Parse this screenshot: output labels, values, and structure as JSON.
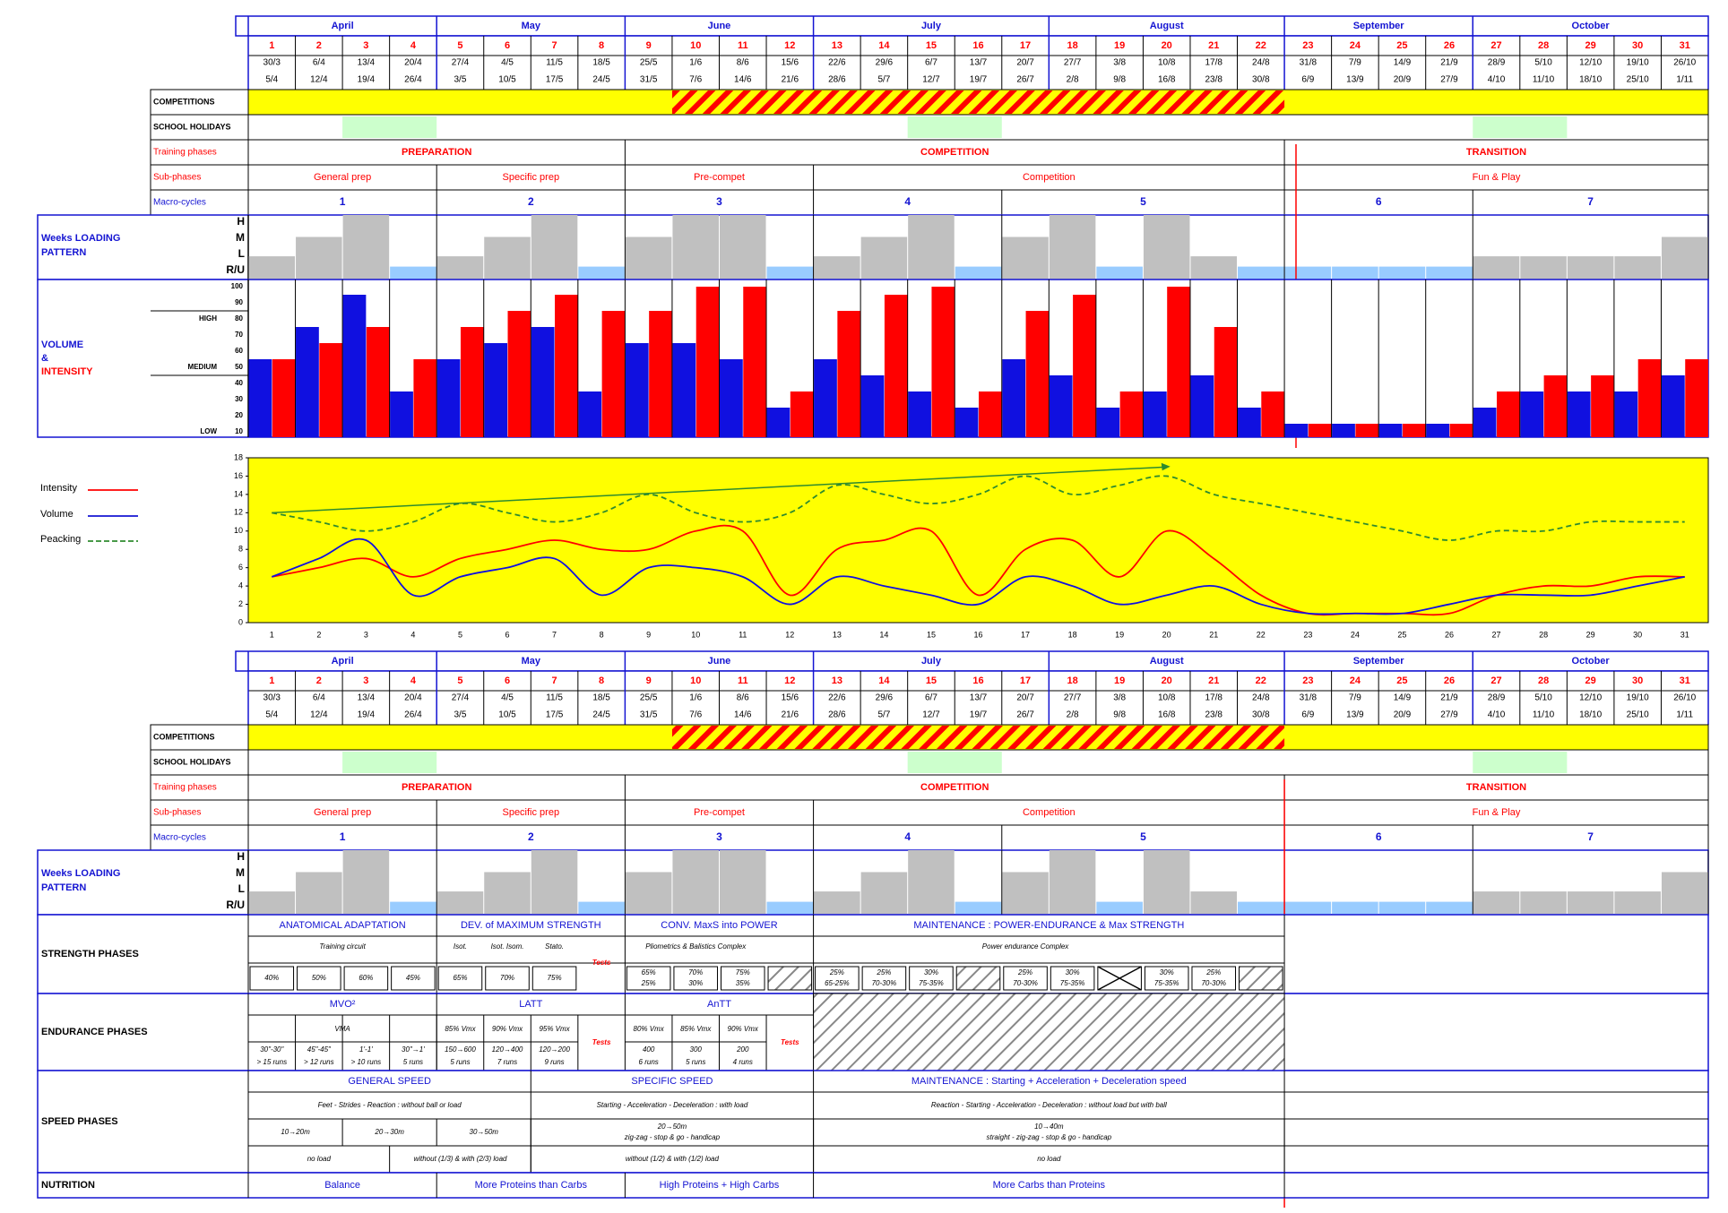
{
  "months": [
    {
      "label": "April",
      "span": [
        1,
        4
      ]
    },
    {
      "label": "May",
      "span": [
        5,
        8
      ]
    },
    {
      "label": "June",
      "span": [
        9,
        12
      ]
    },
    {
      "label": "July",
      "span": [
        13,
        17
      ]
    },
    {
      "label": "August",
      "span": [
        18,
        22
      ]
    },
    {
      "label": "September",
      "span": [
        23,
        26
      ]
    },
    {
      "label": "October",
      "span": [
        27,
        31
      ]
    }
  ],
  "weeks": [
    "1",
    "2",
    "3",
    "4",
    "5",
    "6",
    "7",
    "8",
    "9",
    "10",
    "11",
    "12",
    "13",
    "14",
    "15",
    "16",
    "17",
    "18",
    "19",
    "20",
    "21",
    "22",
    "23",
    "24",
    "25",
    "26",
    "27",
    "28",
    "29",
    "30",
    "31"
  ],
  "week_starts": [
    "30/3",
    "6/4",
    "13/4",
    "20/4",
    "27/4",
    "4/5",
    "11/5",
    "18/5",
    "25/5",
    "1/6",
    "8/6",
    "15/6",
    "22/6",
    "29/6",
    "6/7",
    "13/7",
    "20/7",
    "27/7",
    "3/8",
    "10/8",
    "17/8",
    "24/8",
    "31/8",
    "7/9",
    "14/9",
    "21/9",
    "28/9",
    "5/10",
    "12/10",
    "19/10",
    "26/10"
  ],
  "week_ends": [
    "5/4",
    "12/4",
    "19/4",
    "26/4",
    "3/5",
    "10/5",
    "17/5",
    "24/5",
    "31/5",
    "7/6",
    "14/6",
    "21/6",
    "28/6",
    "5/7",
    "12/7",
    "19/7",
    "26/7",
    "2/8",
    "9/8",
    "16/8",
    "23/8",
    "30/8",
    "6/9",
    "13/9",
    "20/9",
    "27/9",
    "4/10",
    "11/10",
    "18/10",
    "25/10",
    "1/11"
  ],
  "row_labels": {
    "competitions": "COMPETITIONS",
    "school_holidays": "SCHOOL HOLIDAYS",
    "training_phases": "Training phases",
    "sub_phases": "Sub-phases",
    "macro_cycles": "Macro-cycles",
    "loading_line1": "Weeks LOADING",
    "loading_line2": "PATTERN",
    "volume": "VOLUME",
    "amp": "&",
    "intensity": "INTENSITY",
    "strength": "STRENGTH PHASES",
    "endurance": "ENDURANCE PHASES",
    "speed": "SPEED PHASES",
    "nutrition": "NUTRITION"
  },
  "competitions_weeks": [
    10,
    22
  ],
  "school_holidays": [
    [
      3,
      4
    ],
    [
      15,
      16
    ],
    [
      27,
      28
    ]
  ],
  "training_phases": [
    {
      "label": "PREPARATION",
      "span": [
        1,
        8
      ]
    },
    {
      "label": "COMPETITION",
      "span": [
        9,
        22
      ]
    },
    {
      "label": "TRANSITION",
      "span": [
        23,
        31
      ]
    }
  ],
  "sub_phases": [
    {
      "label": "General prep",
      "span": [
        1,
        4
      ]
    },
    {
      "label": "Specific prep",
      "span": [
        5,
        8
      ]
    },
    {
      "label": "Pre-compet",
      "span": [
        9,
        12
      ]
    },
    {
      "label": "Competition",
      "span": [
        13,
        22
      ]
    },
    {
      "label": "Fun & Play",
      "span": [
        23,
        31
      ]
    }
  ],
  "macro_cycles": [
    {
      "label": "1",
      "span": [
        1,
        4
      ]
    },
    {
      "label": "2",
      "span": [
        5,
        8
      ]
    },
    {
      "label": "3",
      "span": [
        9,
        12
      ]
    },
    {
      "label": "4",
      "span": [
        13,
        16
      ]
    },
    {
      "label": "5",
      "span": [
        17,
        22
      ]
    },
    {
      "label": "6",
      "span": [
        23,
        26
      ]
    },
    {
      "label": "7",
      "span": [
        27,
        31
      ]
    }
  ],
  "loading_levels": {
    "labels": [
      "H",
      "M",
      "L",
      "R/U"
    ]
  },
  "loading_pattern": [
    "L",
    "M",
    "H",
    "R",
    "L",
    "M",
    "H",
    "R",
    "M",
    "H",
    "H",
    "R",
    "L",
    "M",
    "H",
    "R",
    "M",
    "H",
    "R",
    "H",
    "L",
    "R",
    "R",
    "R",
    "R",
    "R",
    "L",
    "L",
    "L",
    "L",
    "M"
  ],
  "colors": {
    "blue": "#1010e0",
    "red": "#ff0000",
    "grey": "#c0c0c0",
    "lightblue": "#99ccff",
    "yellow": "#ffff00",
    "green": "#ccffcc",
    "darkgreen": "#2e8b2e"
  },
  "chart_data": [
    {
      "type": "bar",
      "title": "VOLUME & INTENSITY",
      "categories": [
        "1",
        "2",
        "3",
        "4",
        "5",
        "6",
        "7",
        "8",
        "9",
        "10",
        "11",
        "12",
        "13",
        "14",
        "15",
        "16",
        "17",
        "18",
        "19",
        "20",
        "21",
        "22",
        "23",
        "24",
        "25",
        "26",
        "27",
        "28",
        "29",
        "30",
        "31"
      ],
      "series": [
        {
          "name": "VOLUME",
          "color": "#1010e0",
          "values": [
            55,
            75,
            95,
            35,
            55,
            65,
            75,
            35,
            65,
            65,
            55,
            25,
            55,
            45,
            35,
            25,
            55,
            45,
            25,
            35,
            45,
            25,
            15,
            15,
            15,
            15,
            25,
            35,
            35,
            35,
            45
          ]
        },
        {
          "name": "INTENSITY",
          "color": "#ff0000",
          "values": [
            55,
            65,
            75,
            55,
            75,
            85,
            95,
            85,
            85,
            100,
            100,
            35,
            85,
            95,
            100,
            35,
            85,
            95,
            35,
            100,
            75,
            35,
            15,
            15,
            15,
            15,
            35,
            45,
            45,
            55,
            55
          ]
        }
      ],
      "ylim": [
        10,
        100
      ],
      "yticks": [
        "10",
        "20",
        "30",
        "40",
        "50",
        "60",
        "70",
        "80",
        "90",
        "100"
      ],
      "level_labels": {
        "high": "HIGH",
        "medium": "MEDIUM",
        "low": "LOW"
      }
    },
    {
      "type": "line",
      "x": [
        1,
        2,
        3,
        4,
        5,
        6,
        7,
        8,
        9,
        10,
        11,
        12,
        13,
        14,
        15,
        16,
        17,
        18,
        19,
        20,
        21,
        22,
        23,
        24,
        25,
        26,
        27,
        28,
        29,
        30,
        31
      ],
      "series": [
        {
          "name": "Intensity",
          "color": "#ff0000",
          "values": [
            5,
            6,
            7,
            5,
            7,
            8,
            9,
            8,
            8,
            10,
            10,
            3,
            8,
            9,
            10,
            3,
            8,
            9,
            5,
            10,
            7,
            3,
            1,
            1,
            1,
            1,
            3,
            4,
            4,
            5,
            5
          ]
        },
        {
          "name": "Volume",
          "color": "#1010e0",
          "values": [
            5,
            7,
            9,
            3,
            5,
            6,
            7,
            3,
            6,
            6,
            5,
            2,
            5,
            4,
            3,
            2,
            5,
            4,
            2,
            3,
            4,
            2,
            1,
            1,
            1,
            2,
            3,
            3,
            3,
            4,
            5
          ]
        },
        {
          "name": "Peacking",
          "color": "#2e8b2e",
          "values": [
            12,
            11,
            10,
            11,
            13,
            12,
            11,
            12,
            14,
            12,
            11,
            12,
            15,
            14,
            13,
            14,
            16,
            14,
            15,
            16,
            14,
            13,
            12,
            11,
            10,
            9,
            10,
            10,
            11,
            11,
            11
          ]
        }
      ],
      "trend": {
        "from": [
          1,
          12
        ],
        "to": [
          20,
          17
        ]
      },
      "ylim": [
        0,
        18
      ],
      "yticks": [
        "0",
        "2",
        "4",
        "6",
        "8",
        "10",
        "12",
        "14",
        "16",
        "18"
      ]
    }
  ],
  "strength": {
    "headers": [
      {
        "label": "ANATOMICAL ADAPTATION",
        "span": [
          1,
          4
        ]
      },
      {
        "label": "DEV. of MAXIMUM STRENGTH",
        "span": [
          5,
          8
        ]
      },
      {
        "label": "CONV. MaxS into POWER",
        "span": [
          9,
          12
        ]
      },
      {
        "label": "MAINTENANCE : POWER-ENDURANCE & Max STRENGTH",
        "span": [
          13,
          22
        ]
      }
    ],
    "methods": [
      {
        "label": "Training circuit",
        "span": [
          1,
          4
        ]
      },
      {
        "label": "Isot.",
        "span": [
          5,
          5
        ]
      },
      {
        "label": "Isot. Isom.",
        "span": [
          6,
          6
        ]
      },
      {
        "label": "Stato.",
        "span": [
          7,
          7
        ]
      },
      {
        "label": "Pliometrics & Balistics Complex",
        "span": [
          9,
          11
        ]
      },
      {
        "label": "Power endurance Complex",
        "span": [
          13,
          21
        ]
      }
    ],
    "tests": "Tests",
    "loads": [
      {
        "w": 1,
        "a": "40%"
      },
      {
        "w": 2,
        "a": "50%"
      },
      {
        "w": 3,
        "a": "60%"
      },
      {
        "w": 4,
        "a": "45%"
      },
      {
        "w": 5,
        "a": "65%"
      },
      {
        "w": 6,
        "a": "70%"
      },
      {
        "w": 7,
        "a": "75%"
      },
      {
        "w": 9,
        "a": "65%",
        "b": "25%"
      },
      {
        "w": 10,
        "a": "70%",
        "b": "30%"
      },
      {
        "w": 11,
        "a": "75%",
        "b": "35%"
      },
      {
        "w": 13,
        "a": "25%",
        "b": "65-25%"
      },
      {
        "w": 14,
        "a": "25%",
        "b": "70-30%"
      },
      {
        "w": 15,
        "a": "30%",
        "b": "75-35%"
      },
      {
        "w": 17,
        "a": "25%",
        "b": "70-30%"
      },
      {
        "w": 18,
        "a": "30%",
        "b": "75-35%"
      },
      {
        "w": 20,
        "a": "30%",
        "b": "75-35%"
      },
      {
        "w": 21,
        "a": "25%",
        "b": "70-30%"
      }
    ]
  },
  "endurance": {
    "headers": [
      {
        "label": "MVO²",
        "span": [
          1,
          4
        ]
      },
      {
        "label": "LATT",
        "span": [
          5,
          8
        ]
      },
      {
        "label": "AnTT",
        "span": [
          9,
          12
        ]
      }
    ],
    "vma": "VMA",
    "tests": "Tests",
    "sets": [
      {
        "w": 1,
        "a": "30\"-30\"",
        "b": "> 15 runs"
      },
      {
        "w": 2,
        "a": "45\"-45\"",
        "b": "> 12 runs"
      },
      {
        "w": 3,
        "a": "1'-1'",
        "b": "> 10 runs"
      },
      {
        "w": 4,
        "a": "30\"→1'",
        "b": "5 runs"
      },
      {
        "w": 5,
        "a": "150→600",
        "b": "5 runs"
      },
      {
        "w": 6,
        "a": "120→400",
        "b": "7 runs"
      },
      {
        "w": 7,
        "a": "120→200",
        "b": "9 runs"
      },
      {
        "w": 9,
        "a": "400",
        "b": "6 runs"
      },
      {
        "w": 10,
        "a": "300",
        "b": "5 runs"
      },
      {
        "w": 11,
        "a": "200",
        "b": "4 runs"
      }
    ],
    "speeds": [
      {
        "w": 5,
        "t": "85% Vmx"
      },
      {
        "w": 6,
        "t": "90% Vmx"
      },
      {
        "w": 7,
        "t": "95% Vmx"
      },
      {
        "w": 9,
        "t": "80% Vmx"
      },
      {
        "w": 10,
        "t": "85% Vmx"
      },
      {
        "w": 11,
        "t": "90% Vmx"
      }
    ]
  },
  "speed": {
    "headers": [
      {
        "label": "GENERAL SPEED",
        "span": [
          1,
          6
        ]
      },
      {
        "label": "SPECIFIC SPEED",
        "span": [
          7,
          12
        ]
      },
      {
        "label": "MAINTENANCE : Starting + Acceleration + Deceleration speed",
        "span": [
          13,
          22
        ]
      }
    ],
    "row2": [
      {
        "label": "Feet - Strides - Reaction : without ball or load",
        "span": [
          1,
          6
        ]
      },
      {
        "label": "Starting - Acceleration - Deceleration : with load",
        "span": [
          7,
          12
        ]
      },
      {
        "label": "Reaction - Starting - Acceleration - Deceleration : without load but with ball",
        "span": [
          13,
          22
        ]
      }
    ],
    "row3": [
      {
        "label": "10→20m",
        "span": [
          1,
          2
        ]
      },
      {
        "label": "20→30m",
        "span": [
          3,
          4
        ]
      },
      {
        "label": "30→50m",
        "span": [
          5,
          6
        ]
      },
      {
        "label": "20→50m",
        "label2": "zig-zag - stop & go - handicap",
        "span": [
          7,
          12
        ]
      },
      {
        "label": "10→40m",
        "label2": "straight - zig-zag - stop & go - handicap",
        "span": [
          13,
          22
        ]
      }
    ],
    "row4": [
      {
        "label": "no load",
        "span": [
          1,
          3
        ]
      },
      {
        "label": "without (1/3) & with (2/3) load",
        "span": [
          4,
          6
        ]
      },
      {
        "label": "without (1/2) & with (1/2) load",
        "span": [
          7,
          12
        ]
      },
      {
        "label": "no load",
        "span": [
          13,
          22
        ]
      }
    ]
  },
  "nutrition": [
    {
      "label": "Balance",
      "span": [
        1,
        4
      ]
    },
    {
      "label": "More Proteins than Carbs",
      "span": [
        5,
        8
      ]
    },
    {
      "label": "High Proteins + High Carbs",
      "span": [
        9,
        12
      ]
    },
    {
      "label": "More Carbs than Proteins",
      "span": [
        13,
        22
      ]
    }
  ],
  "legend": {
    "intensity": "Intensity",
    "volume": "Volume",
    "peacking": "Peacking"
  }
}
